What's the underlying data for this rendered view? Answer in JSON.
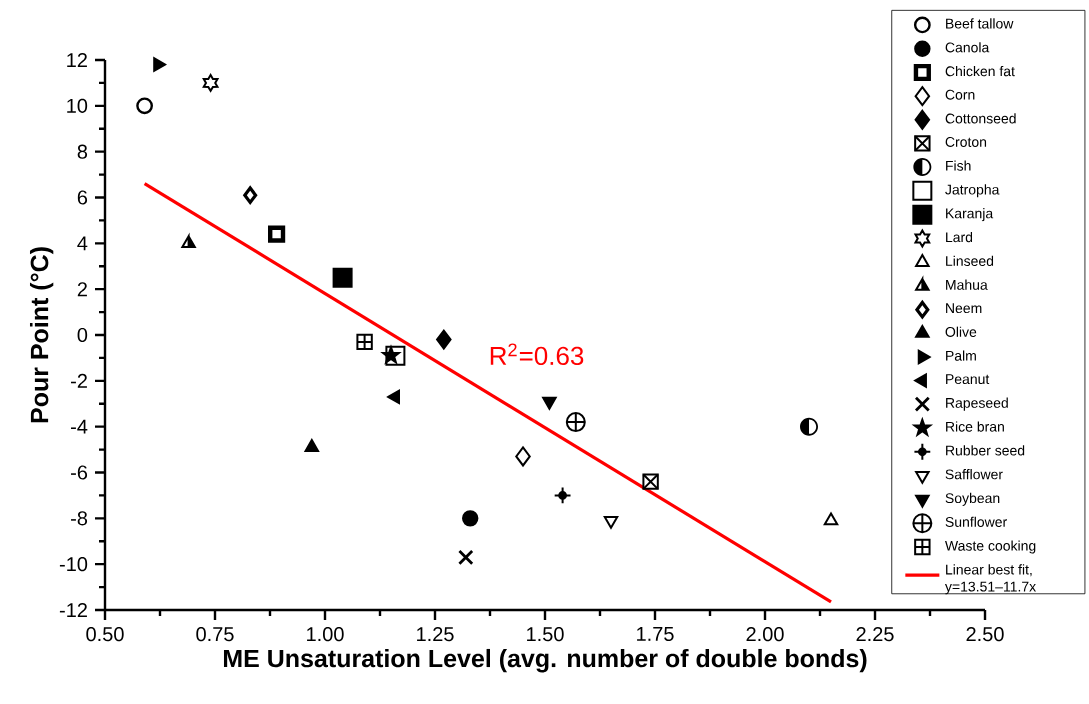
{
  "chart_data": {
    "type": "scatter",
    "xlabel": "ME Unsaturation Level (avg. number of double bonds)",
    "ylabel": "Pour Point (°C)",
    "annotations": [
      "R$^{2}$=0.63"
    ],
    "xlim": [
      0.5,
      2.5
    ],
    "ylim": [
      -12,
      12
    ],
    "xticks": [
      {
        "value": 0.5,
        "label": "0.50"
      },
      {
        "value": 0.75,
        "label": "0.75"
      },
      {
        "value": 1.0,
        "label": "1.00"
      },
      {
        "value": 1.25,
        "label": "1.25"
      },
      {
        "value": 1.5,
        "label": "1.50"
      },
      {
        "value": 1.75,
        "label": "1.75"
      },
      {
        "value": 2.0,
        "label": "2.00"
      },
      {
        "value": 2.25,
        "label": "2.25"
      },
      {
        "value": 2.5,
        "label": "2.50"
      }
    ],
    "yticks": [
      -12,
      -10,
      -8,
      -6,
      -4,
      -2,
      0,
      2,
      4,
      6,
      8,
      10,
      12
    ],
    "legend": "right",
    "grid": false,
    "series": [
      {
        "name": "Beef tallow",
        "color": "#000000",
        "marker": "circle",
        "x": [
          0.59
        ],
        "values": [
          10
        ]
      },
      {
        "name": "Canola",
        "color": "#000000",
        "marker": "circle",
        "x": [
          1.33
        ],
        "values": [
          -8
        ]
      },
      {
        "name": "Chicken fat",
        "color": "#000000",
        "marker": "square",
        "x": [
          0.89
        ],
        "values": [
          4.4
        ]
      },
      {
        "name": "Corn",
        "color": "#000000",
        "marker": "diamond",
        "x": [
          1.45
        ],
        "values": [
          -5.3
        ]
      },
      {
        "name": "Cottonseed",
        "color": "#000000",
        "marker": "diamond",
        "x": [
          1.27
        ],
        "values": [
          -0.2
        ]
      },
      {
        "name": "Croton",
        "color": "#000000",
        "marker": "square",
        "x": [
          1.74
        ],
        "values": [
          -6.4
        ]
      },
      {
        "name": "Fish",
        "color": "#000000",
        "x": [
          2.1
        ],
        "values": [
          -4
        ]
      },
      {
        "name": "Jatropha",
        "color": "#000000",
        "marker": "square",
        "x": [
          1.16
        ],
        "values": [
          -0.9
        ]
      },
      {
        "name": "Karanja",
        "color": "#000000",
        "marker": "square",
        "x": [
          1.04
        ],
        "values": [
          2.5
        ]
      },
      {
        "name": "Lard",
        "color": "#000000",
        "x": [
          0.74
        ],
        "values": [
          11
        ]
      },
      {
        "name": "Linseed",
        "color": "#000000",
        "marker": "triangle",
        "x": [
          2.15
        ],
        "values": [
          -8.1
        ]
      },
      {
        "name": "Mahua",
        "color": "#000000",
        "marker": "triangle",
        "x": [
          0.69
        ],
        "values": [
          4
        ]
      },
      {
        "name": "Neem",
        "color": "#000000",
        "marker": "diamond",
        "x": [
          0.83
        ],
        "values": [
          6.1
        ]
      },
      {
        "name": "Olive",
        "color": "#000000",
        "marker": "triangle",
        "x": [
          0.97
        ],
        "values": [
          -4.9
        ]
      },
      {
        "name": "Palm",
        "color": "#000000",
        "marker": "triangle",
        "x": [
          0.62
        ],
        "values": [
          11.8
        ]
      },
      {
        "name": "Peanut",
        "color": "#000000",
        "marker": "triangle",
        "x": [
          1.16
        ],
        "values": [
          -2.7
        ]
      },
      {
        "name": "Rapeseed",
        "color": "#000000",
        "marker": "cross",
        "x": [
          1.32
        ],
        "values": [
          -9.7
        ]
      },
      {
        "name": "Rice bran",
        "color": "#000000",
        "marker": "star",
        "x": [
          1.15
        ],
        "values": [
          -0.9
        ]
      },
      {
        "name": "Rubber seed",
        "color": "#000000",
        "marker": "circle",
        "x": [
          1.54
        ],
        "values": [
          -7
        ]
      },
      {
        "name": "Safflower",
        "color": "#000000",
        "marker": "triangle",
        "x": [
          1.65
        ],
        "values": [
          -8.1
        ]
      },
      {
        "name": "Soybean",
        "color": "#000000",
        "marker": "triangle",
        "x": [
          1.51
        ],
        "values": [
          -2.9
        ]
      },
      {
        "name": "Sunflower",
        "color": "#000000",
        "marker": "circle",
        "x": [
          1.57
        ],
        "values": [
          -3.8
        ]
      },
      {
        "name": "Waste cooking",
        "color": "#000000",
        "marker": "square",
        "x": [
          1.09
        ],
        "values": [
          -0.3
        ]
      },
      {
        "name": "Linear best fit, y=13.51–11.7x",
        "type": "line",
        "color": "#ff0000",
        "marker": "none",
        "line_style": "solid",
        "x": [
          0.59,
          2.15
        ],
        "values": [
          6.61,
          -11.65
        ]
      }
    ]
  }
}
